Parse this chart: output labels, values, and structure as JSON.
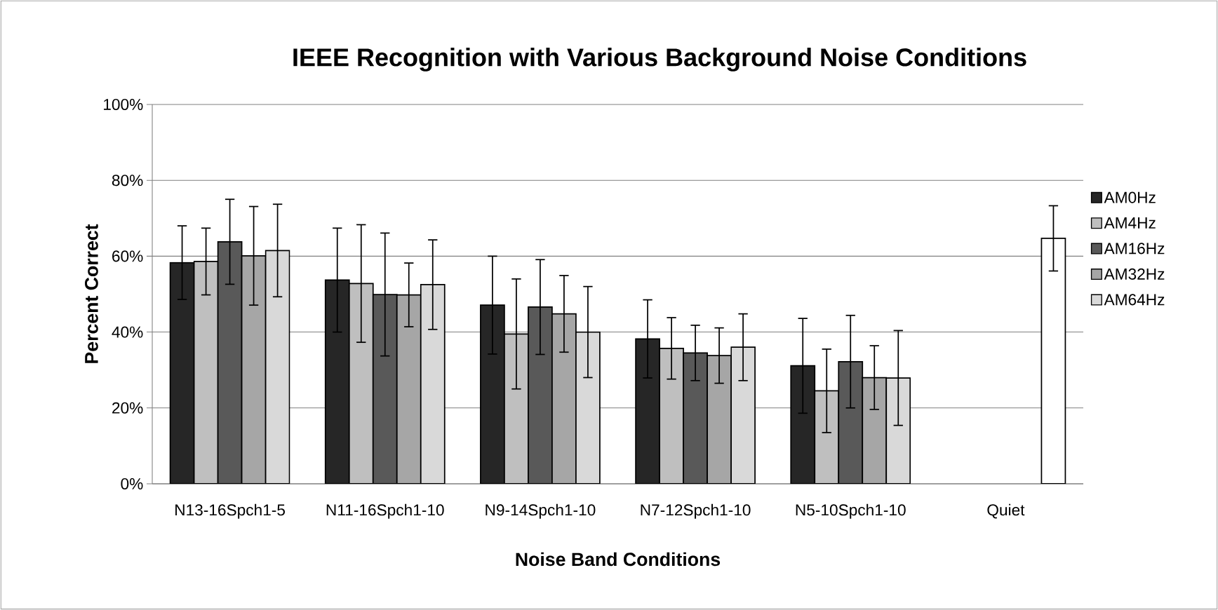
{
  "chart_data": {
    "type": "bar",
    "title": "IEEE Recognition with Various Background Noise Conditions",
    "xlabel": "Noise Band Conditions",
    "ylabel": "Percent Correct",
    "categories": [
      "N13-16Spch1-5",
      "N11-16Spch1-10",
      "N9-14Spch1-10",
      "N7-12Spch1-10",
      "N5-10Spch1-10",
      "Quiet"
    ],
    "series": [
      {
        "name": "AM0Hz",
        "color": "#262626",
        "values": [
          58.3,
          53.7,
          47.1,
          38.2,
          31.1,
          null
        ],
        "errors": [
          9.7,
          13.7,
          12.9,
          10.3,
          12.5,
          null
        ]
      },
      {
        "name": "AM4Hz",
        "color": "#bfbfbf",
        "values": [
          58.6,
          52.8,
          39.5,
          35.7,
          24.5,
          null
        ],
        "errors": [
          8.8,
          15.5,
          14.5,
          8.1,
          11.0,
          null
        ]
      },
      {
        "name": "AM16Hz",
        "color": "#595959",
        "values": [
          63.8,
          49.9,
          46.6,
          34.5,
          32.2,
          null
        ],
        "errors": [
          11.2,
          16.2,
          12.5,
          7.3,
          12.2,
          null
        ]
      },
      {
        "name": "AM32Hz",
        "color": "#a6a6a6",
        "values": [
          60.1,
          49.8,
          44.8,
          33.8,
          28.0,
          null
        ],
        "errors": [
          13.0,
          8.4,
          10.1,
          7.3,
          8.4,
          null
        ]
      },
      {
        "name": "AM64Hz",
        "color": "#d9d9d9",
        "colors": [
          "#d9d9d9",
          "#d9d9d9",
          "#d9d9d9",
          "#d9d9d9",
          "#d9d9d9",
          "#ffffff"
        ],
        "values": [
          61.5,
          52.5,
          40.0,
          36.0,
          27.9,
          64.7
        ],
        "errors": [
          12.2,
          11.8,
          12.0,
          8.8,
          12.5,
          8.6
        ]
      }
    ],
    "ylim": [
      0,
      100
    ],
    "yticks": [
      {
        "value": 0,
        "label": "0%"
      },
      {
        "value": 20,
        "label": "20%"
      },
      {
        "value": 40,
        "label": "40%"
      },
      {
        "value": 60,
        "label": "60%"
      },
      {
        "value": 80,
        "label": "80%"
      },
      {
        "value": 100,
        "label": "100%"
      }
    ],
    "grid": "y",
    "legend": "right"
  }
}
